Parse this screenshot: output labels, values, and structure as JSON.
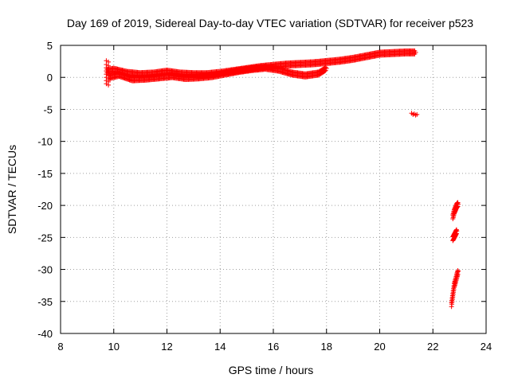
{
  "chart_data": {
    "type": "scatter",
    "title": "Day 169 of 2019, Sidereal Day-to-day VTEC variation (SDTVAR) for receiver p523",
    "xlabel": "GPS time / hours",
    "ylabel": "SDTVAR / TECUs",
    "xlim": [
      8,
      24
    ],
    "ylim": [
      -40,
      5
    ],
    "x_ticks": [
      "8",
      "10",
      "12",
      "14",
      "16",
      "18",
      "20",
      "22",
      "24"
    ],
    "y_ticks": [
      "5",
      "0",
      "-5",
      "-10",
      "-15",
      "-20",
      "-25",
      "-30",
      "-35",
      "-40"
    ],
    "grid": true,
    "marker": "plus",
    "color": "#ff0000",
    "series": [
      {
        "band_a": {
          "x": [
            9.75,
            10.0,
            10.5,
            11.0,
            11.5,
            12.0,
            12.5,
            13.0,
            13.5,
            14.0,
            14.5,
            15.0,
            15.5,
            16.0,
            16.5,
            17.0,
            17.5,
            18.0,
            18.5,
            19.0,
            19.5,
            20.0,
            20.5,
            21.0,
            21.35
          ],
          "y": [
            1.0,
            1.2,
            0.7,
            0.5,
            0.6,
            0.9,
            0.6,
            0.5,
            0.5,
            0.7,
            1.0,
            1.3,
            1.6,
            1.8,
            2.0,
            2.1,
            2.2,
            2.4,
            2.6,
            2.9,
            3.3,
            3.7,
            3.8,
            3.9,
            3.9
          ]
        },
        "band_b": {
          "x": [
            9.8,
            10.2,
            10.7,
            11.2,
            11.7,
            12.2,
            12.7,
            13.2,
            13.7,
            14.2,
            14.7,
            15.2,
            15.7,
            16.2,
            16.7,
            17.2,
            17.7,
            18.0
          ],
          "y": [
            0.0,
            0.4,
            -0.3,
            -0.2,
            0.0,
            0.2,
            -0.1,
            0.0,
            0.2,
            0.6,
            1.0,
            1.3,
            1.5,
            1.2,
            0.6,
            0.3,
            0.6,
            1.4
          ]
        },
        "isolated": {
          "x": [
            21.2,
            21.25,
            21.3,
            21.35,
            21.4
          ],
          "y": [
            -5.6,
            -5.8,
            -5.7,
            -5.9,
            -5.8
          ]
        },
        "late_arcs": [
          {
            "x": [
              22.75,
              22.8,
              22.85,
              22.9,
              22.95
            ],
            "y": [
              -21.8,
              -21.0,
              -20.5,
              -20.0,
              -19.8
            ]
          },
          {
            "x": [
              22.75,
              22.8,
              22.85,
              22.9
            ],
            "y": [
              -25.2,
              -24.8,
              -24.4,
              -24.0
            ]
          },
          {
            "x": [
              22.7,
              22.75,
              22.8,
              22.85,
              22.9,
              22.95
            ],
            "y": [
              -35.5,
              -34.0,
              -32.5,
              -31.8,
              -31.0,
              -30.3
            ]
          }
        ]
      }
    ]
  }
}
